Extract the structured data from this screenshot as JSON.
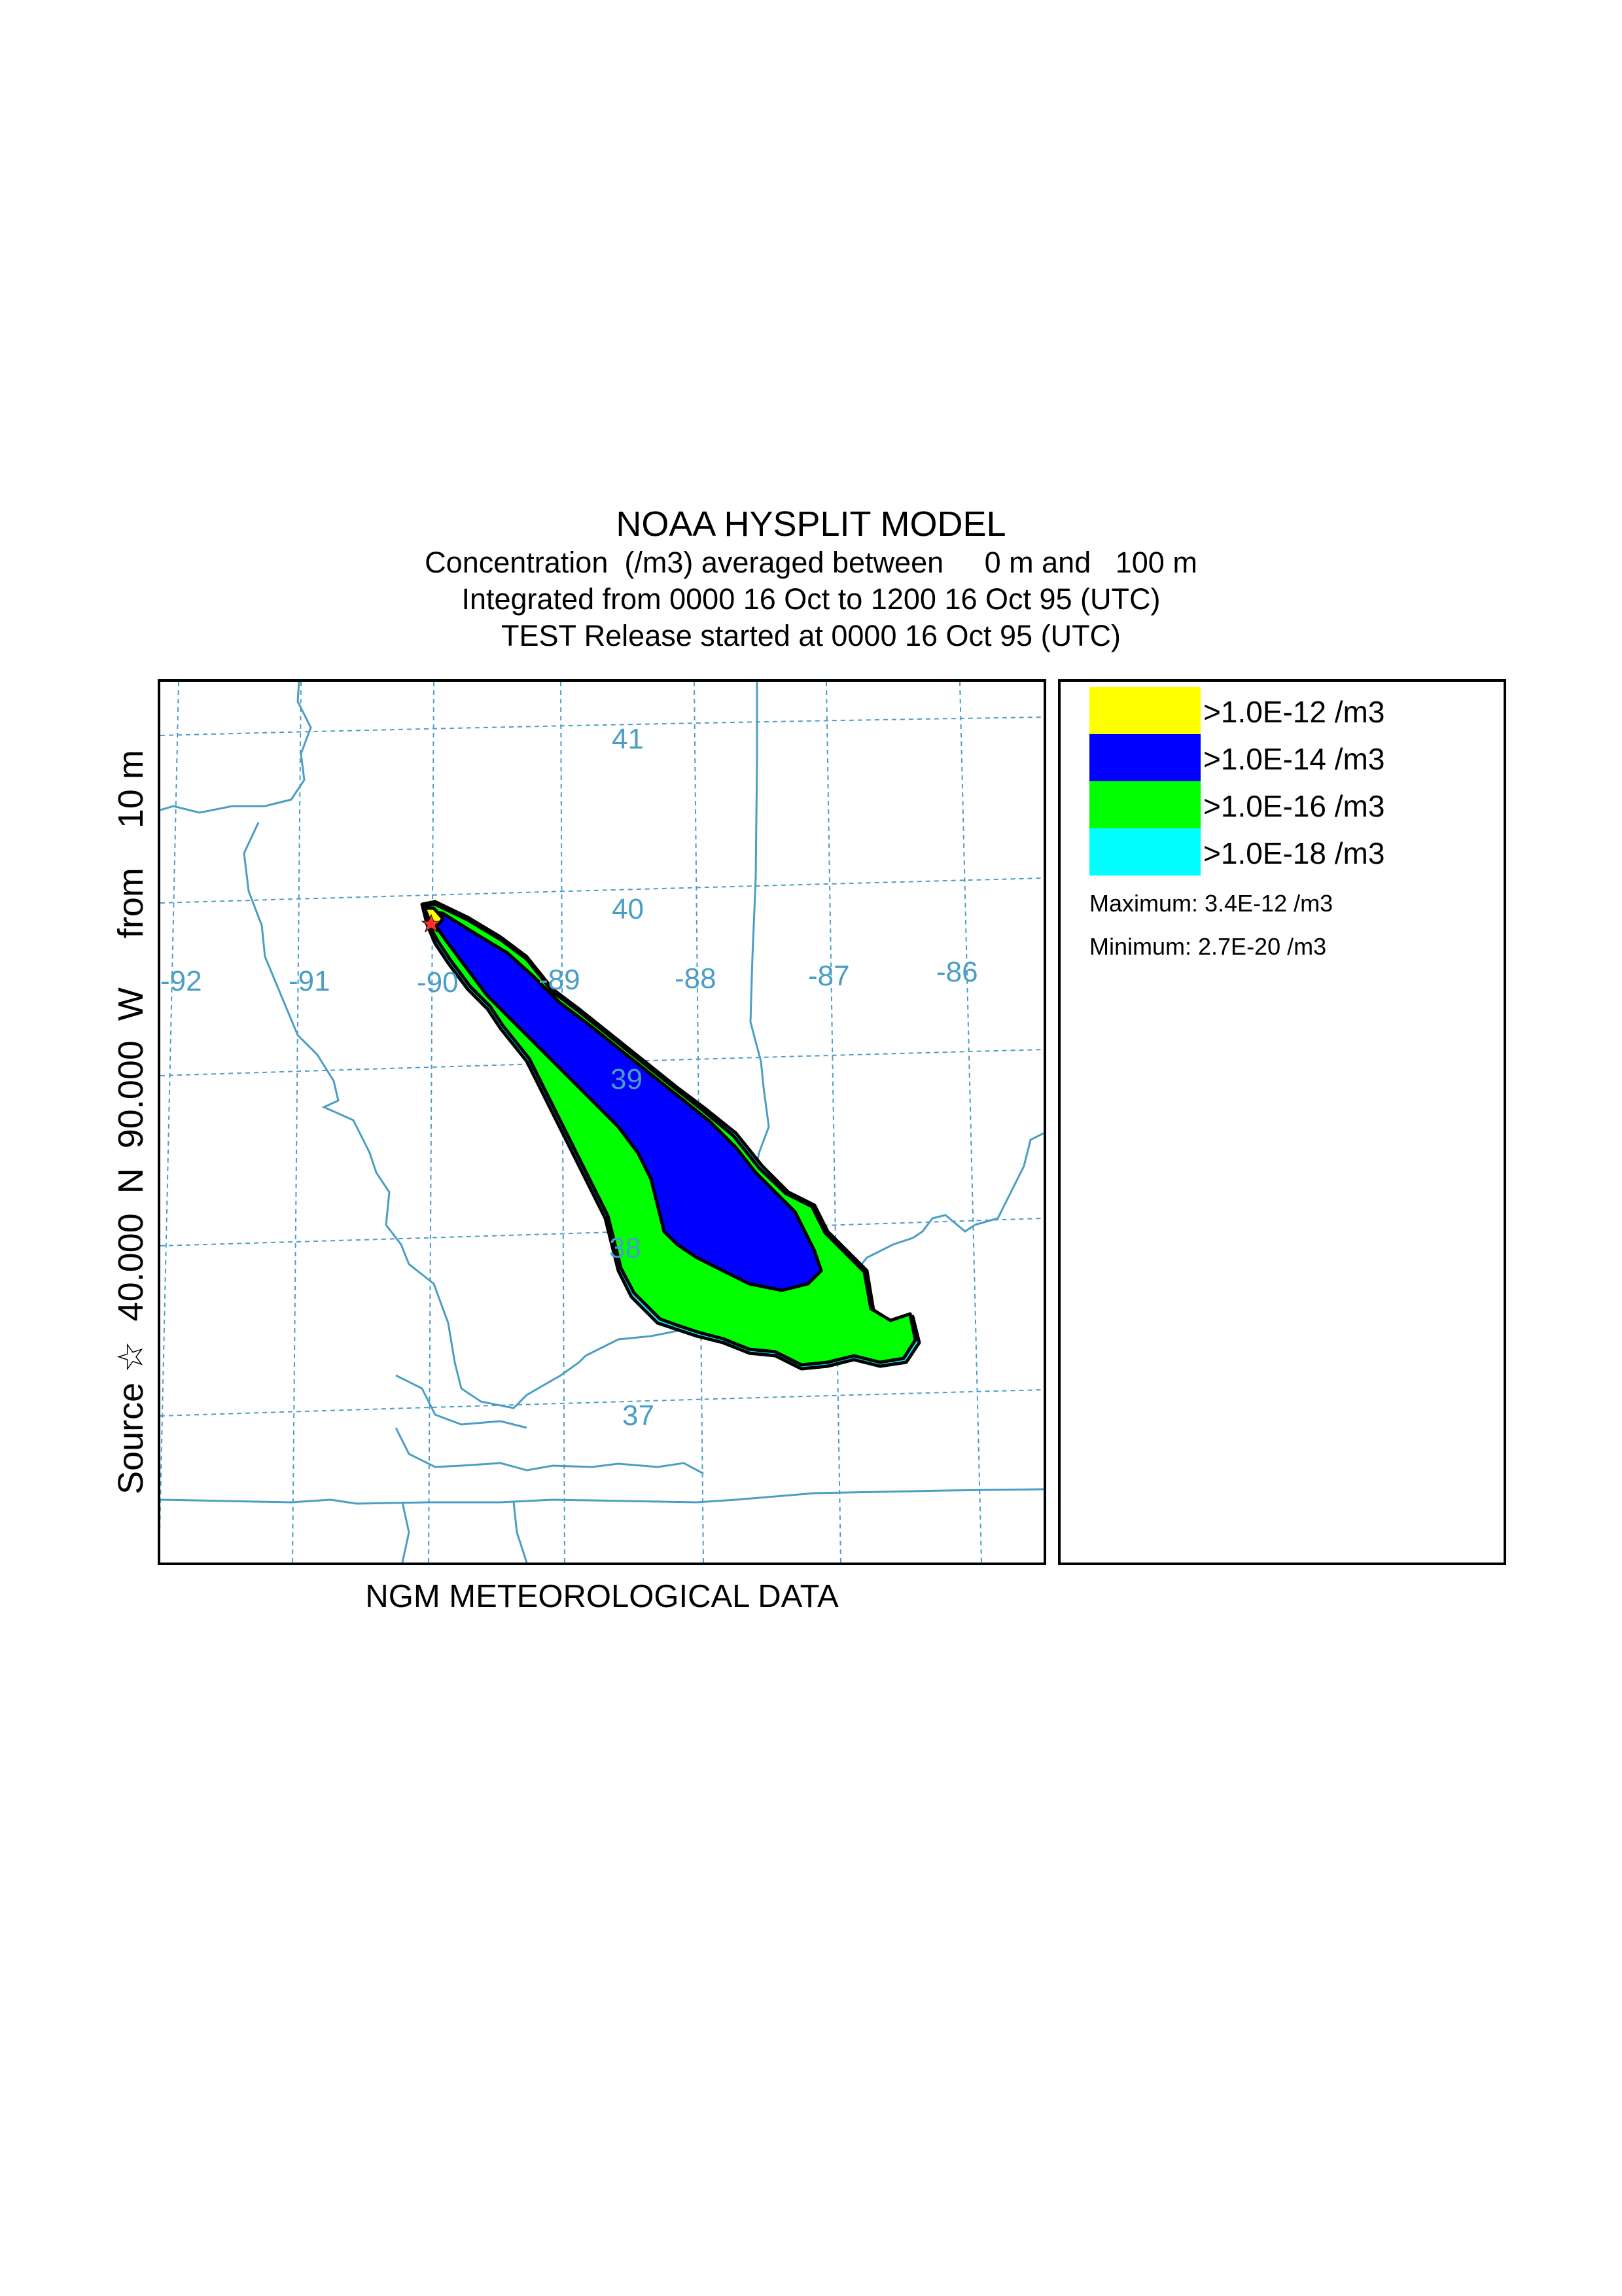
{
  "header": {
    "title": "NOAA HYSPLIT MODEL",
    "line1": "Concentration  (/m3) averaged between     0 m and   100 m",
    "line2": "Integrated from 0000 16 Oct to 1200 16 Oct 95 (UTC)",
    "line3": "TEST Release started at 0000 16 Oct 95 (UTC)"
  },
  "source_label": "Source ☆  40.000  N  90.000  W     from    10 m",
  "footer": "NGM  METEOROLOGICAL DATA",
  "map": {
    "longitude_labels": [
      "-92",
      "-91",
      "-90",
      "-89",
      "-88",
      "-87",
      "-86"
    ],
    "latitude_labels": [
      "41",
      "40",
      "39",
      "38",
      "37"
    ],
    "source_marker": "☆",
    "colors": {
      "grid": "#4a9ec4",
      "boundary": "#4a9ec4",
      "yellow": "#ffff00",
      "blue": "#0000ff",
      "green": "#00ff00",
      "cyan": "#00ffff",
      "outline": "#000000"
    }
  },
  "legend": {
    "items": [
      {
        "label": ">1.0E-12 /m3",
        "color": "#ffff00"
      },
      {
        "label": ">1.0E-14 /m3",
        "color": "#0000ff"
      },
      {
        "label": ">1.0E-16 /m3",
        "color": "#00ff00"
      },
      {
        "label": ">1.0E-18 /m3",
        "color": "#00ffff"
      }
    ],
    "maximum": "Maximum: 3.4E-12 /m3",
    "minimum": "Minimum: 2.7E-20 /m3"
  }
}
